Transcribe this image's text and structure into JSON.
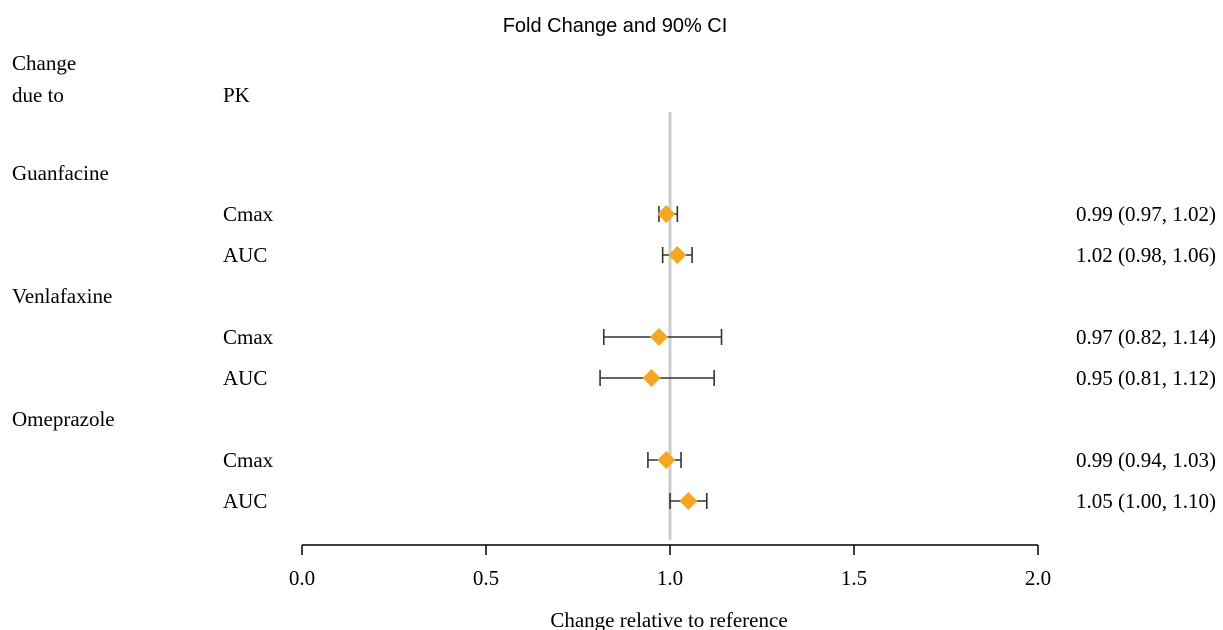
{
  "chart_data": {
    "type": "forest",
    "title": "Fold Change and 90% CI",
    "xlabel": "Change relative to reference",
    "xlim": [
      0.0,
      2.0
    ],
    "xticks": [
      "0.0",
      "0.5",
      "1.0",
      "1.5",
      "2.0"
    ],
    "reference_line": 1.0,
    "column_headers": {
      "group": "Change\ndue to",
      "parameter": "PK"
    },
    "groups": [
      {
        "name": "Guanfacine",
        "rows": [
          {
            "parameter": "Cmax",
            "estimate": 0.99,
            "lower": 0.97,
            "upper": 1.02,
            "label": "0.99 (0.97, 1.02)"
          },
          {
            "parameter": "AUC",
            "estimate": 1.02,
            "lower": 0.98,
            "upper": 1.06,
            "label": "1.02 (0.98, 1.06)"
          }
        ]
      },
      {
        "name": "Venlafaxine",
        "rows": [
          {
            "parameter": "Cmax",
            "estimate": 0.97,
            "lower": 0.82,
            "upper": 1.14,
            "label": "0.97 (0.82, 1.14)"
          },
          {
            "parameter": "AUC",
            "estimate": 0.95,
            "lower": 0.81,
            "upper": 1.12,
            "label": "0.95 (0.81, 1.12)"
          }
        ]
      },
      {
        "name": "Omeprazole",
        "rows": [
          {
            "parameter": "Cmax",
            "estimate": 0.99,
            "lower": 0.94,
            "upper": 1.03,
            "label": "0.99 (0.94, 1.03)"
          },
          {
            "parameter": "AUC",
            "estimate": 1.05,
            "lower": 1.0,
            "upper": 1.1,
            "label": "1.05 (1.00, 1.10)"
          }
        ]
      }
    ],
    "colors": {
      "marker": "#F5A623",
      "error_bar": "#333333",
      "reference_line": "#CCCCCC",
      "axis": "#000000"
    }
  }
}
